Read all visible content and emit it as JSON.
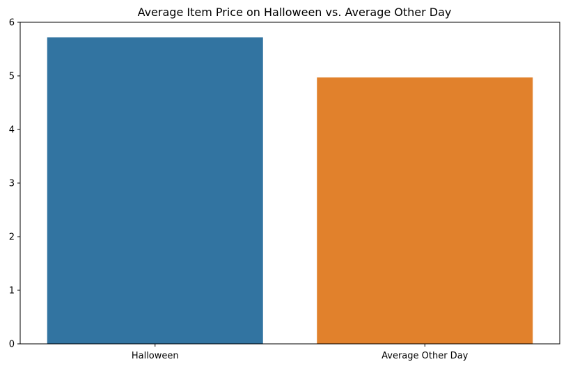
{
  "chart_data": {
    "type": "bar",
    "title": "Average Item Price on Halloween vs. Average Other Day",
    "xlabel": "",
    "ylabel": "",
    "categories": [
      "Halloween",
      "Average Other Day"
    ],
    "values": [
      5.72,
      4.97
    ],
    "colors": [
      "#3274a1",
      "#e1812c"
    ],
    "ylim": [
      0,
      6
    ],
    "yticks": [
      0,
      1,
      2,
      3,
      4,
      5,
      6
    ],
    "ytick_labels": [
      "0",
      "1",
      "2",
      "3",
      "4",
      "5",
      "6"
    ],
    "grid": false,
    "legend": false
  }
}
